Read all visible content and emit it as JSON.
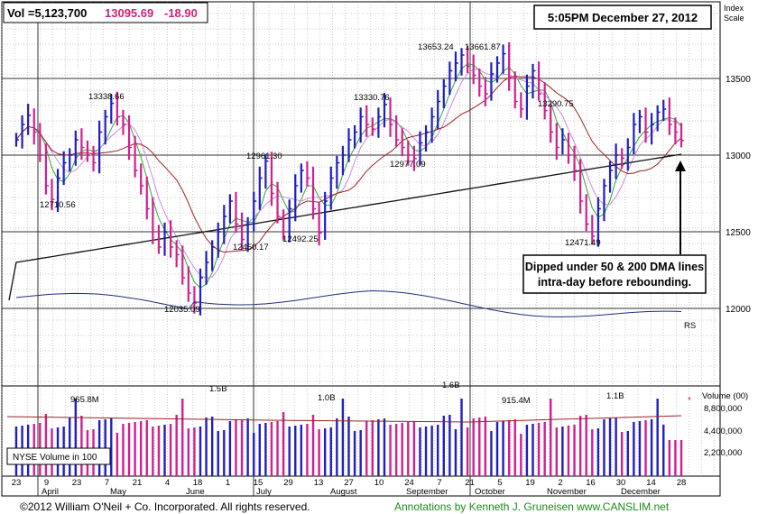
{
  "header": {
    "vol_label": "Vol =5,123,700",
    "price": "13095.69",
    "change": "-18.90",
    "timestamp": "5:05PM December 27, 2012",
    "index_scale": [
      "Index",
      "Scale"
    ]
  },
  "annotation": {
    "line1": "Dipped under 50 & 200 DMA lines",
    "line2": "intra-day before rebounding."
  },
  "footer": {
    "copyright": "©2012 William O'Neil + Co. Incorporated. All rights reserved.",
    "credit": "Annotations by Kenneth J. Gruneisen www.CANSLIM.net"
  },
  "volume_panel": {
    "label": "NYSE Volume in 100",
    "axis_title": "Volume (00)",
    "ticks": [
      "8,800,000",
      "4,400,000",
      "2,200,000"
    ],
    "peaks": [
      "965.8M",
      "1.5B",
      "1.0B",
      "1.6B",
      "915.4M",
      "1.1B"
    ]
  },
  "colors": {
    "up_bar": "#1f1fbf",
    "down_bar": "#d0208f",
    "ma50": "#2ea82e",
    "ma200": "#111111",
    "ma_red": "#a02020",
    "ma_pink": "#c98be0",
    "rs_line": "#1f2f7f",
    "grid": "#9a9a9a",
    "price_text": "#cc2277",
    "footer_credit": "#1a8a1a"
  },
  "chart_data": {
    "type": "ohlc",
    "title": "",
    "price_ticks": [
      13500,
      13000,
      12500,
      12000
    ],
    "ylim": [
      11500,
      14000
    ],
    "price_annotations": [
      {
        "label": "12710.56",
        "date": "2012-04-10",
        "value": 12710.56
      },
      {
        "label": "13338.66",
        "date": "2012-05-01",
        "value": 13338.66
      },
      {
        "label": "12035.09",
        "date": "2012-06-04",
        "value": 12035.09
      },
      {
        "label": "12450.17",
        "date": "2012-06-21",
        "value": 12450.17
      },
      {
        "label": "12961.30",
        "date": "2012-07-03",
        "value": 12961.3
      },
      {
        "label": "12492.25",
        "date": "2012-07-24",
        "value": 12492.25
      },
      {
        "label": "13330.76",
        "date": "2012-08-16",
        "value": 13330.76
      },
      {
        "label": "12977.09",
        "date": "2012-09-04",
        "value": 12977.09
      },
      {
        "label": "13653.24",
        "date": "2012-09-14",
        "value": 13653.24
      },
      {
        "label": "13661.87",
        "date": "2012-10-05",
        "value": 13661.87
      },
      {
        "label": "13290.75",
        "date": "2012-10-19",
        "value": 13290.75
      },
      {
        "label": "12471.49",
        "date": "2012-11-15",
        "value": 12471.49
      }
    ],
    "x_day_labels": [
      "23",
      "9",
      "23",
      "7",
      "21",
      "4",
      "18",
      "1",
      "15",
      "29",
      "13",
      "27",
      "10",
      "24",
      "7",
      "21",
      "5",
      "19",
      "2",
      "16",
      "30",
      "14",
      "28"
    ],
    "x_month_labels": [
      "April",
      "May",
      "June",
      "July",
      "August",
      "September",
      "October",
      "November",
      "December"
    ],
    "rs_label": "RS",
    "close_path": [
      13100,
      13200,
      13260,
      13150,
      13000,
      12800,
      12710,
      12850,
      12950,
      13000,
      13100,
      13050,
      13000,
      12950,
      13150,
      13250,
      13338,
      13250,
      13200,
      13050,
      12900,
      12800,
      12650,
      12500,
      12400,
      12500,
      12400,
      12350,
      12200,
      12100,
      12035,
      12200,
      12300,
      12400,
      12500,
      12600,
      12700,
      12550,
      12450,
      12550,
      12700,
      12850,
      12961,
      12750,
      12600,
      12500,
      12650,
      12800,
      12900,
      12850,
      12650,
      12492,
      12700,
      12850,
      12950,
      13000,
      13100,
      13150,
      13250,
      13200,
      13170,
      13250,
      13330,
      13200,
      13100,
      13050,
      13000,
      12977,
      13080,
      13150,
      13250,
      13350,
      13450,
      13550,
      13600,
      13653,
      13580,
      13520,
      13450,
      13400,
      13530,
      13600,
      13661,
      13500,
      13350,
      13300,
      13450,
      13550,
      13400,
      13290,
      13150,
      13050,
      13100,
      13000,
      12900,
      12700,
      12550,
      12471,
      12650,
      12800,
      12900,
      13000,
      12980,
      13050,
      13200,
      13250,
      13150,
      13200,
      13280,
      13300,
      13200,
      13150,
      13095
    ]
  }
}
